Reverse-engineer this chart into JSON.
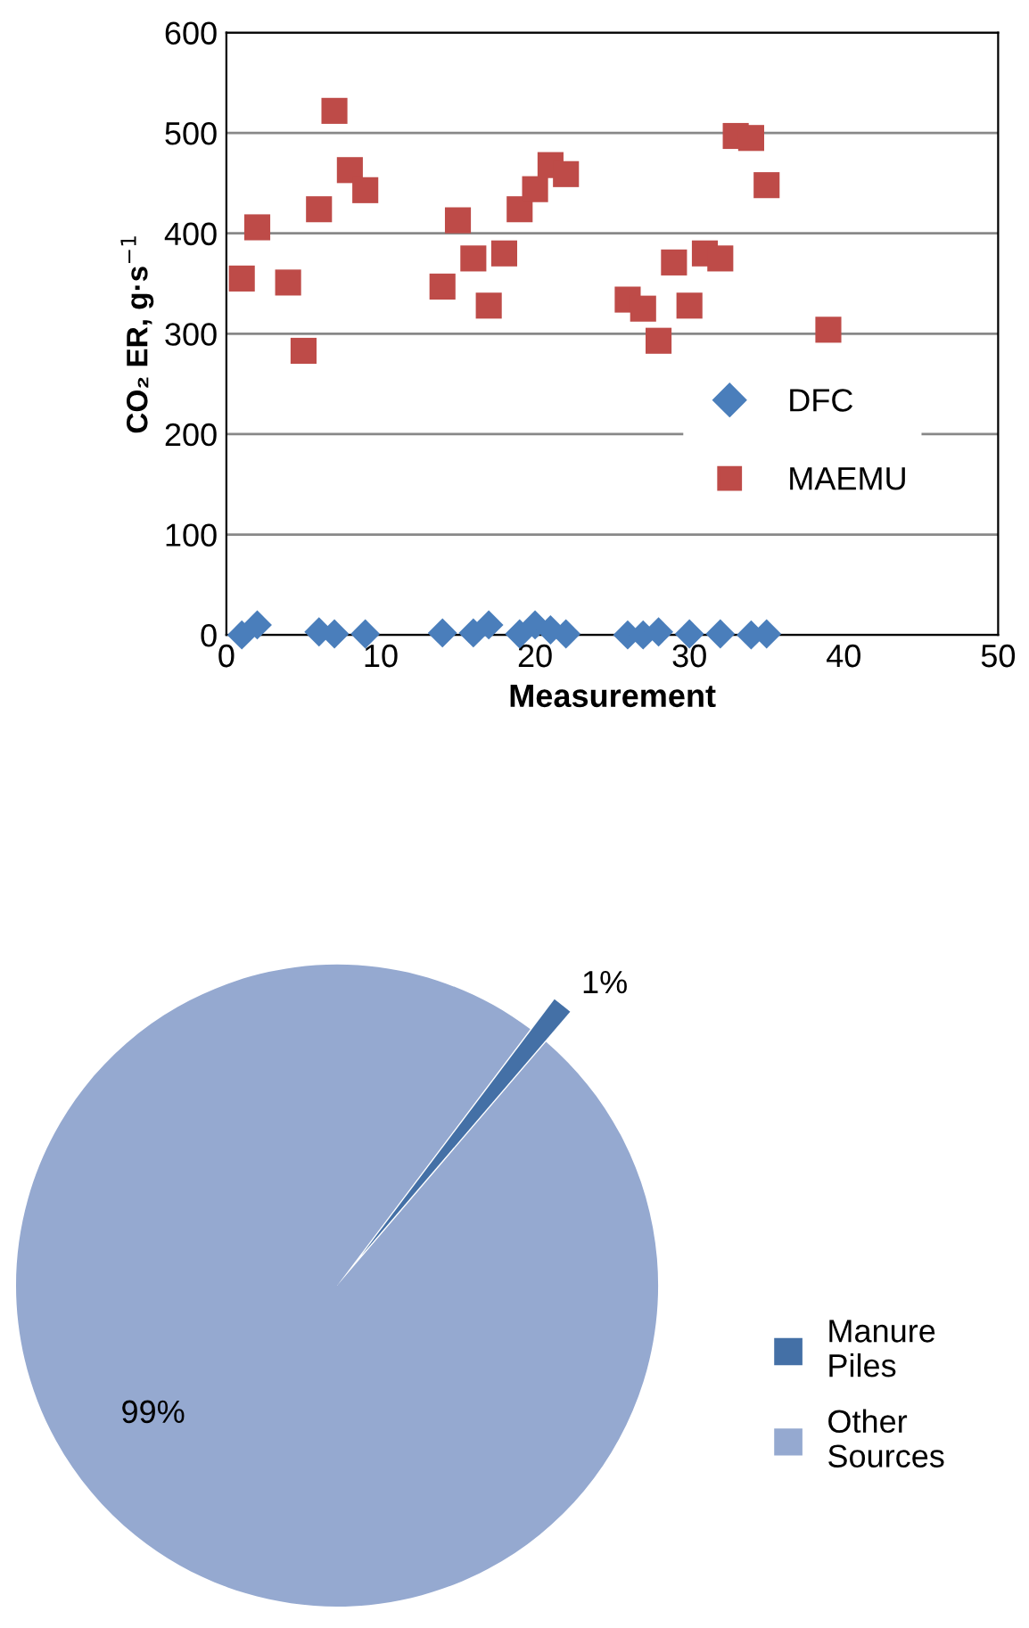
{
  "chart_data": [
    {
      "type": "scatter",
      "xlabel": "Measurement",
      "ylabel": "CO₂ ER, g·s$^{−1}$",
      "xlim": [
        0,
        50
      ],
      "xticks": [
        0,
        10,
        20,
        30,
        40,
        50
      ],
      "ylim": [
        0,
        600
      ],
      "yticks": [
        0,
        100,
        200,
        300,
        400,
        500,
        600
      ],
      "grid": "y",
      "legend": "right",
      "series": [
        {
          "name": "DFC",
          "color": "#4a7ebb",
          "marker": "diamond",
          "x": [
            1,
            2,
            6,
            7,
            9,
            14,
            16,
            17,
            19,
            20,
            21,
            22,
            26,
            27,
            28,
            30,
            32,
            34,
            35
          ],
          "values": [
            0,
            10,
            3,
            1,
            1,
            2,
            2,
            10,
            1,
            10,
            5,
            1,
            0,
            0,
            3,
            1,
            1,
            0,
            1
          ]
        },
        {
          "name": "MAEMU",
          "color": "#be4b48",
          "marker": "square",
          "x": [
            1,
            2,
            4,
            5,
            6,
            7,
            8,
            9,
            14,
            15,
            16,
            17,
            18,
            19,
            20,
            21,
            22,
            26,
            27,
            28,
            29,
            30,
            31,
            32,
            33,
            34,
            35,
            39
          ],
          "values": [
            355,
            406,
            351,
            283,
            424,
            522,
            463,
            443,
            347,
            413,
            375,
            328,
            380,
            424,
            444,
            468,
            459,
            334,
            325,
            293,
            371,
            328,
            380,
            375,
            497,
            495,
            448,
            304
          ]
        }
      ]
    },
    {
      "type": "pie",
      "categories": [
        "Manure Piles",
        "Other Sources"
      ],
      "values": [
        1,
        99
      ],
      "colors": [
        "#4470a6",
        "#95a9d0"
      ],
      "value_labels": [
        "1%",
        "99%"
      ],
      "legend": "right"
    }
  ]
}
